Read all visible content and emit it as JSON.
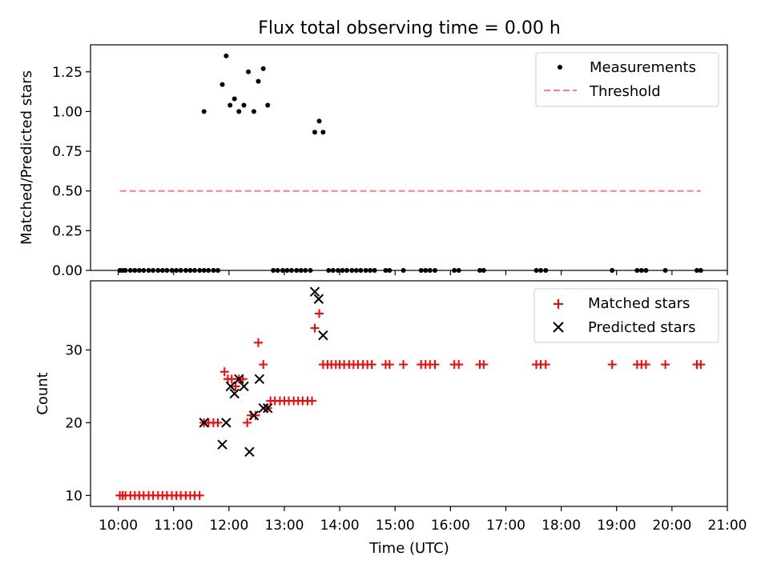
{
  "figure": {
    "title": "Flux total observing time = 0.00 h",
    "xlabel": "Time (UTC)"
  },
  "chart_data": [
    {
      "type": "scatter",
      "title": "Flux total observing time = 0.00 h",
      "ylabel": "Matched/Predicted stars",
      "xlim": [
        9.5,
        21.0
      ],
      "ylim": [
        0.0,
        1.42
      ],
      "yticks": [
        0.0,
        0.25,
        0.5,
        0.75,
        1.0,
        1.25
      ],
      "ytick_labels": [
        "0.00",
        "0.25",
        "0.50",
        "0.75",
        "1.00",
        "1.25"
      ],
      "legend": {
        "position": "top-right",
        "entries": [
          "Measurements",
          "Threshold"
        ]
      },
      "colors": {
        "measurements": "#000000",
        "threshold": "#ff7f7f"
      },
      "series": [
        {
          "name": "Measurements",
          "x": [
            10.03,
            10.08,
            10.13,
            10.22,
            10.3,
            10.38,
            10.46,
            10.55,
            10.63,
            10.72,
            10.8,
            10.88,
            10.97,
            11.05,
            11.13,
            11.22,
            11.3,
            11.38,
            11.47,
            11.55,
            11.63,
            11.72,
            11.8,
            11.55,
            11.88,
            11.95,
            12.02,
            12.1,
            12.18,
            12.27,
            12.35,
            12.45,
            12.53,
            12.62,
            12.7,
            12.8,
            12.88,
            12.97,
            13.05,
            13.13,
            13.22,
            13.3,
            13.38,
            13.47,
            13.55,
            13.63,
            13.7,
            13.8,
            13.88,
            13.97,
            14.05,
            14.13,
            14.22,
            14.3,
            14.38,
            14.47,
            14.55,
            14.63,
            14.83,
            14.9,
            15.15,
            15.47,
            15.55,
            15.63,
            15.72,
            16.07,
            16.15,
            16.53,
            16.6,
            17.55,
            17.63,
            17.72,
            18.92,
            19.37,
            19.45,
            19.53,
            19.88,
            20.45,
            20.52
          ],
          "y": [
            0,
            0,
            0,
            0,
            0,
            0,
            0,
            0,
            0,
            0,
            0,
            0,
            0,
            0,
            0,
            0,
            0,
            0,
            0,
            0,
            0,
            0,
            0,
            1.0,
            1.17,
            1.35,
            1.04,
            1.08,
            1.0,
            1.04,
            1.25,
            1.0,
            1.19,
            1.27,
            1.04,
            0,
            0,
            0,
            0,
            0,
            0,
            0,
            0,
            0,
            0.87,
            0.94,
            0.87,
            0,
            0,
            0,
            0,
            0,
            0,
            0,
            0,
            0,
            0,
            0,
            0,
            0,
            0,
            0,
            0,
            0,
            0,
            0,
            0,
            0,
            0,
            0,
            0,
            0,
            0,
            0,
            0,
            0,
            0,
            0,
            0
          ]
        },
        {
          "name": "Threshold",
          "x": [
            10.03,
            20.52
          ],
          "y": [
            0.5,
            0.5
          ]
        }
      ]
    },
    {
      "type": "scatter",
      "ylabel": "Count",
      "xlabel": "Time (UTC)",
      "xlim": [
        9.5,
        21.0
      ],
      "ylim": [
        8.5,
        39.5
      ],
      "yticks": [
        10,
        20,
        30
      ],
      "ytick_labels": [
        "10",
        "20",
        "30"
      ],
      "xticks": [
        10,
        11,
        12,
        13,
        14,
        15,
        16,
        17,
        18,
        19,
        20,
        21
      ],
      "xtick_labels": [
        "10:00",
        "11:00",
        "12:00",
        "13:00",
        "14:00",
        "15:00",
        "16:00",
        "17:00",
        "18:00",
        "19:00",
        "20:00",
        "21:00"
      ],
      "legend": {
        "position": "top-right",
        "entries": [
          "Matched stars",
          "Predicted stars"
        ]
      },
      "colors": {
        "matched": "#ff0000",
        "predicted": "#000000"
      },
      "series": [
        {
          "name": "Matched stars",
          "x": [
            10.03,
            10.08,
            10.13,
            10.22,
            10.3,
            10.38,
            10.46,
            10.55,
            10.63,
            10.72,
            10.8,
            10.88,
            10.97,
            11.05,
            11.13,
            11.22,
            11.3,
            11.38,
            11.47,
            11.55,
            11.63,
            11.72,
            11.8,
            11.92,
            11.98,
            12.05,
            12.12,
            12.18,
            12.25,
            12.33,
            12.4,
            12.48,
            12.53,
            12.62,
            12.7,
            12.75,
            12.83,
            12.92,
            13.0,
            13.08,
            13.17,
            13.25,
            13.33,
            13.42,
            13.5,
            13.55,
            13.63,
            13.7,
            13.78,
            13.85,
            13.93,
            14.0,
            14.08,
            14.17,
            14.25,
            14.33,
            14.42,
            14.5,
            14.58,
            14.83,
            14.9,
            15.15,
            15.47,
            15.55,
            15.63,
            15.72,
            16.07,
            16.15,
            16.53,
            16.6,
            17.55,
            17.63,
            17.72,
            18.92,
            19.37,
            19.45,
            19.53,
            19.88,
            20.45,
            20.52
          ],
          "y": [
            10,
            10,
            10,
            10,
            10,
            10,
            10,
            10,
            10,
            10,
            10,
            10,
            10,
            10,
            10,
            10,
            10,
            10,
            10,
            20,
            20,
            20,
            20,
            27,
            26,
            26,
            25,
            26,
            26,
            20,
            21,
            21,
            31,
            28,
            22,
            23,
            23,
            23,
            23,
            23,
            23,
            23,
            23,
            23,
            23,
            33,
            35,
            28,
            28,
            28,
            28,
            28,
            28,
            28,
            28,
            28,
            28,
            28,
            28,
            28,
            28,
            28,
            28,
            28,
            28,
            28,
            28,
            28,
            28,
            28,
            28,
            28,
            28,
            28,
            28,
            28,
            28,
            28,
            28,
            28
          ]
        },
        {
          "name": "Predicted stars",
          "x": [
            11.55,
            11.88,
            11.95,
            12.03,
            12.1,
            12.18,
            12.27,
            12.37,
            12.45,
            12.55,
            12.62,
            12.7,
            13.55,
            13.62,
            13.7
          ],
          "y": [
            20,
            17,
            20,
            25,
            24,
            26,
            25,
            16,
            21,
            26,
            22,
            22,
            38,
            37,
            32
          ]
        }
      ]
    }
  ]
}
